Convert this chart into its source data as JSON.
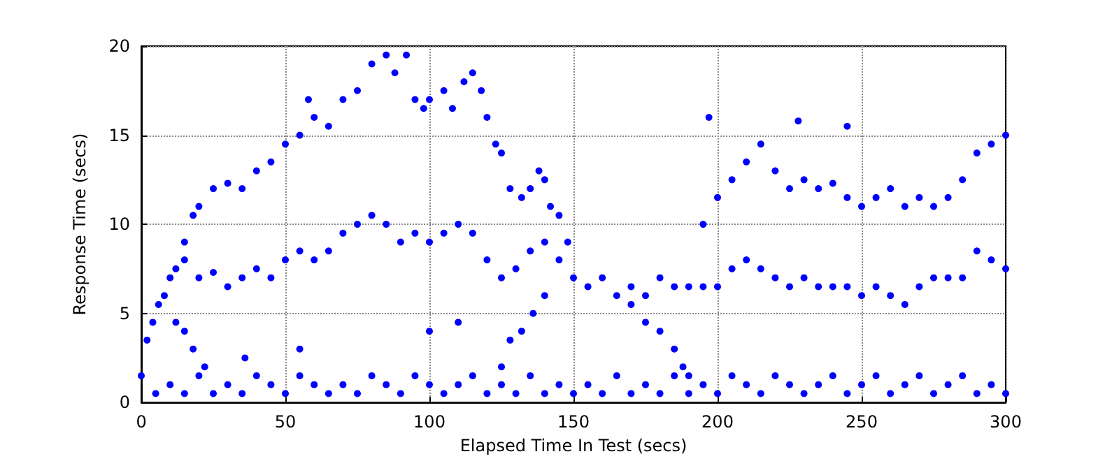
{
  "chart_data": {
    "type": "scatter",
    "xlabel": "Elapsed Time In Test (secs)",
    "ylabel": "Response Time (secs)",
    "xlim": [
      0,
      300
    ],
    "ylim": [
      0,
      20
    ],
    "xticks": [
      0,
      50,
      100,
      150,
      200,
      250,
      300
    ],
    "yticks": [
      0,
      5,
      10,
      15,
      20
    ],
    "grid": true,
    "marker": "circle",
    "series": [
      {
        "color": "#0000ff",
        "x": [
          15,
          18,
          20,
          25,
          30,
          35,
          40,
          45,
          50,
          55,
          58,
          60,
          65,
          70,
          75,
          80,
          85,
          88,
          92,
          95,
          98,
          100,
          105,
          108,
          112,
          115,
          118,
          120,
          123,
          125,
          128,
          132,
          135,
          138,
          140,
          142,
          145,
          148,
          195,
          200,
          205,
          210,
          215,
          220,
          225,
          230,
          235,
          240,
          245,
          250,
          255,
          260,
          265,
          270,
          275,
          280,
          285,
          290,
          295,
          300,
          2,
          4,
          6,
          8,
          10,
          12,
          15,
          20,
          25,
          30,
          35,
          40,
          45,
          50,
          55,
          60,
          65,
          70,
          75,
          80,
          85,
          90,
          95,
          100,
          105,
          110,
          115,
          120,
          125,
          130,
          135,
          140,
          145,
          150,
          155,
          160,
          165,
          170,
          175,
          180,
          185,
          190,
          195,
          200,
          205,
          210,
          215,
          220,
          225,
          230,
          235,
          240,
          245,
          250,
          255,
          260,
          265,
          270,
          275,
          280,
          285,
          290,
          295,
          300,
          170,
          175,
          180,
          185,
          188,
          190,
          125,
          128,
          132,
          136,
          140,
          12,
          15,
          18,
          22,
          0,
          5,
          10,
          15,
          20,
          25,
          30,
          35,
          40,
          45,
          50,
          55,
          60,
          65,
          70,
          75,
          80,
          85,
          90,
          95,
          100,
          105,
          110,
          115,
          120,
          125,
          130,
          135,
          140,
          145,
          150,
          155,
          160,
          165,
          170,
          175,
          180,
          185,
          190,
          195,
          200,
          205,
          210,
          215,
          220,
          225,
          230,
          235,
          240,
          245,
          250,
          255,
          260,
          265,
          270,
          275,
          280,
          285,
          290,
          295,
          300,
          197,
          228,
          245,
          100,
          110,
          55,
          36
        ],
        "values": [
          9,
          10.5,
          11,
          12,
          12.3,
          12,
          13,
          13.5,
          14.5,
          15,
          17,
          16,
          15.5,
          17,
          17.5,
          19,
          19.5,
          18.5,
          19.5,
          17,
          16.5,
          17,
          17.5,
          16.5,
          18,
          18.5,
          17.5,
          16,
          14.5,
          14,
          12,
          11.5,
          12,
          13,
          12.5,
          11,
          10.5,
          9,
          10,
          11.5,
          12.5,
          13.5,
          14.5,
          13,
          12,
          12.5,
          12,
          12.3,
          11.5,
          11,
          11.5,
          12,
          11,
          11.5,
          11,
          11.5,
          12.5,
          14,
          14.5,
          15,
          3.5,
          4.5,
          5.5,
          6,
          7,
          7.5,
          8,
          7,
          7.3,
          6.5,
          7,
          7.5,
          7,
          8,
          8.5,
          8,
          8.5,
          9.5,
          10,
          10.5,
          10,
          9,
          9.5,
          9,
          9.5,
          10,
          9.5,
          8,
          7,
          7.5,
          8.5,
          9,
          8,
          7,
          6.5,
          7,
          6,
          6.5,
          6,
          7,
          6.5,
          6.5,
          6.5,
          6.5,
          7.5,
          8,
          7.5,
          7,
          6.5,
          7,
          6.5,
          6.5,
          6.5,
          6,
          6.5,
          6,
          5.5,
          6.5,
          7,
          7,
          7,
          8.5,
          8,
          7.5,
          5.5,
          4.5,
          4,
          3,
          2,
          1.5,
          2,
          3.5,
          4,
          5,
          6,
          4.5,
          4,
          3,
          2,
          1.5,
          0.5,
          1,
          0.5,
          1.5,
          0.5,
          1,
          0.5,
          1.5,
          1,
          0.5,
          1.5,
          1,
          0.5,
          1,
          0.5,
          1.5,
          1,
          0.5,
          1.5,
          1,
          0.5,
          1,
          1.5,
          0.5,
          1,
          0.5,
          1.5,
          0.5,
          1,
          0.5,
          1,
          0.5,
          1.5,
          0.5,
          1,
          0.5,
          1.5,
          0.5,
          1,
          0.5,
          1.5,
          1,
          0.5,
          1.5,
          1,
          0.5,
          1,
          1.5,
          0.5,
          1,
          1.5,
          0.5,
          1,
          1.5,
          0.5,
          1,
          1.5,
          0.5,
          1,
          0.5,
          16,
          15.8,
          15.5,
          4,
          4.5,
          3,
          2.5
        ]
      }
    ]
  }
}
